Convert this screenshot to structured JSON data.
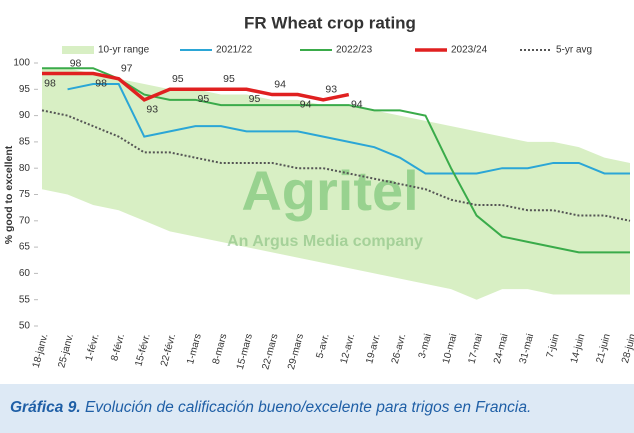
{
  "chart_data": {
    "type": "line",
    "title": "FR Wheat crop rating",
    "y_label": "% good to excellent",
    "watermark": "Agritel",
    "watermark_sub": "An Argus Media company",
    "categories": [
      "18-janv.",
      "25-janv.",
      "1-févr.",
      "8-févr.",
      "15-févr.",
      "22-févr.",
      "1-mars",
      "8-mars",
      "15-mars",
      "22-mars",
      "29-mars",
      "5-avr.",
      "12-avr.",
      "19-avr.",
      "26-avr.",
      "3-mai",
      "10-mai",
      "17-mai",
      "24-mai",
      "31-mai",
      "7-juin",
      "14-juin",
      "21-juin",
      "28-juin"
    ],
    "ylim": [
      50,
      100
    ],
    "yticks": [
      50,
      55,
      60,
      65,
      70,
      75,
      80,
      85,
      90,
      95,
      100
    ],
    "range": {
      "name": "10-yr range",
      "color": "#d8efc4",
      "upper": [
        99,
        99,
        98,
        97,
        96,
        95,
        95,
        94,
        94,
        93,
        93,
        92,
        92,
        91,
        90,
        89,
        88,
        87,
        86,
        85,
        85,
        84,
        82,
        81
      ],
      "lower": [
        76,
        75,
        73,
        72,
        70,
        68,
        67,
        66,
        65,
        64,
        63,
        62,
        61,
        60,
        59,
        58,
        57,
        55,
        57,
        57,
        56,
        56,
        56,
        56
      ]
    },
    "series": [
      {
        "name": "2021/22",
        "color": "#2ba6d6",
        "values": [
          null,
          95,
          96,
          96,
          86,
          87,
          88,
          88,
          87,
          87,
          87,
          86,
          85,
          84,
          82,
          79,
          79,
          79,
          80,
          80,
          81,
          81,
          79,
          79
        ]
      },
      {
        "name": "2022/23",
        "color": "#3aab4a",
        "values": [
          99,
          99,
          99,
          97,
          94,
          93,
          93,
          92,
          92,
          92,
          92,
          92,
          92,
          91,
          91,
          90,
          80,
          71,
          67,
          66,
          65,
          64,
          64,
          64
        ]
      },
      {
        "name": "2023/24",
        "color": "#e02020",
        "labels": true,
        "values": [
          98,
          98,
          98,
          97,
          93,
          95,
          95,
          95,
          95,
          94,
          94,
          93,
          94,
          null,
          null,
          null,
          null,
          null,
          null,
          null,
          null,
          null,
          null,
          null
        ]
      },
      {
        "name": "5-yr avg",
        "color": "#555555",
        "dashed": true,
        "values": [
          91,
          90,
          88,
          86,
          83,
          83,
          82,
          81,
          81,
          81,
          80,
          80,
          79,
          78,
          77,
          76,
          74,
          73,
          73,
          72,
          72,
          71,
          71,
          70
        ]
      }
    ]
  },
  "caption": {
    "label": "Gráfica 9.",
    "text": "Evolución de calificación bueno/excelente para trigos en Francia."
  }
}
